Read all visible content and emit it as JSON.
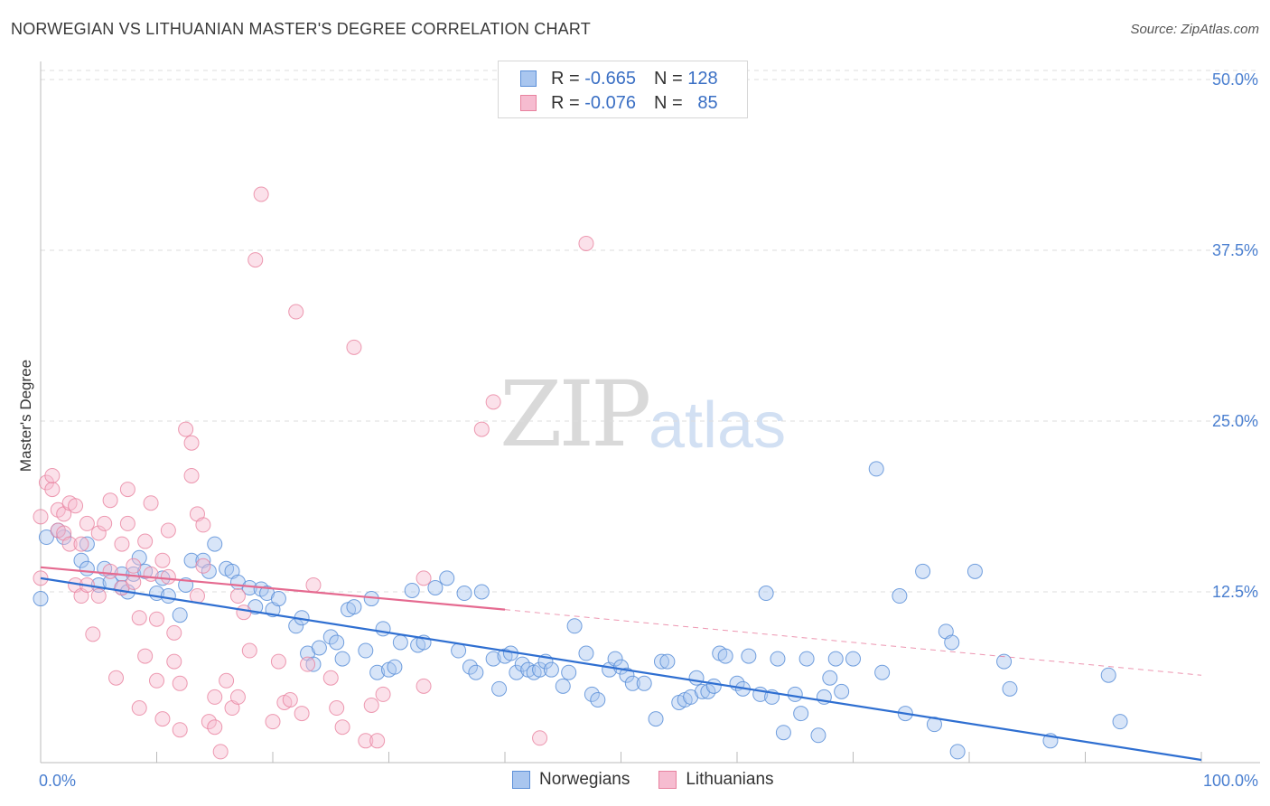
{
  "title": "NORWEGIAN VS LITHUANIAN MASTER'S DEGREE CORRELATION CHART",
  "source": "Source: ZipAtlas.com",
  "watermark": {
    "zip": "ZIP",
    "atlas": "atlas"
  },
  "legend_top": {
    "rows": [
      {
        "r_label": "R =",
        "r_value": "-0.665",
        "n_label": "N =",
        "n_value": "128"
      },
      {
        "r_label": "R =",
        "r_value": "-0.076",
        "n_label": "N =",
        "n_value": "85"
      }
    ]
  },
  "legend_bottom": [
    "Norwegians",
    "Lithuanians"
  ],
  "colors": {
    "norwegian_fill": "#a9c6ef",
    "norwegian_stroke": "#5b8fd8",
    "norwegian_line": "#2f6fd1",
    "lithuanian_fill": "#f6bcd0",
    "lithuanian_stroke": "#e8829f",
    "lithuanian_line": "#e56a90",
    "grid": "#dddddd",
    "tick_text": "#4a7fd0"
  },
  "chart_data": {
    "type": "scatter",
    "title": "NORWEGIAN VS LITHUANIAN MASTER'S DEGREE CORRELATION CHART",
    "xlabel": "",
    "ylabel": "Master's Degree",
    "xlim": [
      0,
      100
    ],
    "ylim": [
      0,
      50
    ],
    "x_tick_labels": [
      "0.0%",
      "100.0%"
    ],
    "y_ticks": [
      12.5,
      25.0,
      37.5,
      50.0
    ],
    "y_tick_labels": [
      "12.5%",
      "25.0%",
      "37.5%",
      "50.0%"
    ],
    "series": [
      {
        "name": "Norwegians",
        "r": -0.665,
        "n": 128,
        "trend": {
          "x": [
            0,
            100
          ],
          "y": [
            13.5,
            0.2
          ]
        },
        "points": [
          [
            0,
            12
          ],
          [
            0.5,
            16.5
          ],
          [
            1.5,
            17
          ],
          [
            2,
            16.5
          ],
          [
            3.5,
            14.8
          ],
          [
            4,
            14.2
          ],
          [
            4,
            16
          ],
          [
            5,
            13
          ],
          [
            5.5,
            14.2
          ],
          [
            6,
            13.2
          ],
          [
            7,
            13.8
          ],
          [
            7,
            12.8
          ],
          [
            7.5,
            12.5
          ],
          [
            8,
            13.8
          ],
          [
            8.5,
            15
          ],
          [
            9,
            14
          ],
          [
            10,
            12.4
          ],
          [
            10.5,
            13.5
          ],
          [
            11,
            12.2
          ],
          [
            12,
            10.8
          ],
          [
            12.5,
            13
          ],
          [
            13,
            14.8
          ],
          [
            14,
            14.8
          ],
          [
            14.5,
            14
          ],
          [
            15,
            16
          ],
          [
            16,
            14.2
          ],
          [
            16.5,
            14
          ],
          [
            17,
            13.2
          ],
          [
            18,
            12.8
          ],
          [
            18.5,
            11.4
          ],
          [
            19,
            12.7
          ],
          [
            19.5,
            12.4
          ],
          [
            20,
            11.2
          ],
          [
            20.5,
            12.0
          ],
          [
            22,
            10
          ],
          [
            22.5,
            10.6
          ],
          [
            23,
            8
          ],
          [
            23.5,
            7.2
          ],
          [
            24,
            8.4
          ],
          [
            25,
            9.2
          ],
          [
            25.5,
            8.8
          ],
          [
            26,
            7.6
          ],
          [
            26.5,
            11.2
          ],
          [
            27,
            11.4
          ],
          [
            28,
            8.2
          ],
          [
            28.5,
            12.0
          ],
          [
            29,
            6.6
          ],
          [
            29.5,
            9.8
          ],
          [
            30,
            6.8
          ],
          [
            30.5,
            7
          ],
          [
            31,
            8.8
          ],
          [
            32,
            12.6
          ],
          [
            32.5,
            8.6
          ],
          [
            33,
            8.8
          ],
          [
            34,
            12.8
          ],
          [
            35,
            13.5
          ],
          [
            36,
            8.2
          ],
          [
            36.5,
            12.4
          ],
          [
            37,
            7
          ],
          [
            37.5,
            6.6
          ],
          [
            38,
            12.5
          ],
          [
            39,
            7.6
          ],
          [
            39.5,
            5.4
          ],
          [
            40,
            7.8
          ],
          [
            40.5,
            8
          ],
          [
            41,
            6.6
          ],
          [
            41.5,
            7.2
          ],
          [
            42,
            6.8
          ],
          [
            42.5,
            6.6
          ],
          [
            43,
            6.8
          ],
          [
            43.5,
            7.4
          ],
          [
            44,
            6.8
          ],
          [
            45,
            5.6
          ],
          [
            45.5,
            6.6
          ],
          [
            46,
            10.0
          ],
          [
            47,
            8
          ],
          [
            47.5,
            5
          ],
          [
            48,
            4.6
          ],
          [
            49,
            6.8
          ],
          [
            49.5,
            7.6
          ],
          [
            50,
            7
          ],
          [
            50.5,
            6.4
          ],
          [
            51,
            5.8
          ],
          [
            52,
            5.8
          ],
          [
            53,
            3.2
          ],
          [
            53.5,
            7.4
          ],
          [
            54,
            7.4
          ],
          [
            55,
            4.4
          ],
          [
            55.5,
            4.6
          ],
          [
            56,
            4.8
          ],
          [
            56.5,
            6.2
          ],
          [
            57,
            5.2
          ],
          [
            57.5,
            5.2
          ],
          [
            58,
            5.6
          ],
          [
            58.5,
            8
          ],
          [
            59,
            7.8
          ],
          [
            60,
            5.8
          ],
          [
            60.5,
            5.4
          ],
          [
            61,
            7.8
          ],
          [
            62,
            5.0
          ],
          [
            62.5,
            12.4
          ],
          [
            63,
            4.8
          ],
          [
            63.5,
            7.6
          ],
          [
            64,
            2.2
          ],
          [
            65,
            5
          ],
          [
            65.5,
            3.6
          ],
          [
            66,
            7.6
          ],
          [
            67,
            2
          ],
          [
            67.5,
            4.8
          ],
          [
            68,
            6.2
          ],
          [
            68.5,
            7.6
          ],
          [
            69,
            5.2
          ],
          [
            70,
            7.6
          ],
          [
            72,
            21.5
          ],
          [
            72.5,
            6.6
          ],
          [
            74,
            12.2
          ],
          [
            74.5,
            3.6
          ],
          [
            76,
            14
          ],
          [
            77,
            2.8
          ],
          [
            78,
            9.6
          ],
          [
            78.5,
            8.8
          ],
          [
            79,
            0.8
          ],
          [
            80.5,
            14
          ],
          [
            83,
            7.4
          ],
          [
            83.5,
            5.4
          ],
          [
            87,
            1.6
          ],
          [
            92,
            6.4
          ],
          [
            93,
            3
          ]
        ]
      },
      {
        "name": "Lithuanians",
        "r": -0.076,
        "n": 85,
        "trend": {
          "x": [
            0,
            40
          ],
          "y": [
            14.3,
            11.2
          ]
        },
        "trend_dashed": {
          "x": [
            40,
            100
          ],
          "y": [
            11.2,
            6.4
          ]
        },
        "points": [
          [
            0,
            18
          ],
          [
            0,
            13.5
          ],
          [
            0.5,
            20.5
          ],
          [
            1,
            20
          ],
          [
            1,
            21
          ],
          [
            1.5,
            18.5
          ],
          [
            1.5,
            17
          ],
          [
            2,
            16.8
          ],
          [
            2,
            18.2
          ],
          [
            2.5,
            19
          ],
          [
            2.5,
            16
          ],
          [
            3,
            13
          ],
          [
            3,
            18.8
          ],
          [
            3.5,
            12.2
          ],
          [
            3.5,
            16
          ],
          [
            4,
            17.5
          ],
          [
            4,
            13
          ],
          [
            4.5,
            9.4
          ],
          [
            5,
            12.2
          ],
          [
            5,
            16.8
          ],
          [
            5.5,
            17.5
          ],
          [
            6,
            14
          ],
          [
            6,
            19.2
          ],
          [
            6.5,
            6.2
          ],
          [
            7,
            12.8
          ],
          [
            7,
            16
          ],
          [
            7.5,
            20
          ],
          [
            7.5,
            17.5
          ],
          [
            8,
            14.4
          ],
          [
            8,
            13.2
          ],
          [
            8.5,
            4
          ],
          [
            8.5,
            10.6
          ],
          [
            9,
            7.8
          ],
          [
            9,
            16.2
          ],
          [
            9.5,
            13.8
          ],
          [
            9.5,
            19
          ],
          [
            10,
            10.5
          ],
          [
            10,
            6
          ],
          [
            10.5,
            3.2
          ],
          [
            10.5,
            14.8
          ],
          [
            11,
            17
          ],
          [
            11,
            13.6
          ],
          [
            11.5,
            9.5
          ],
          [
            11.5,
            7.4
          ],
          [
            12,
            2.4
          ],
          [
            12,
            5.8
          ],
          [
            12.5,
            24.4
          ],
          [
            13,
            23.4
          ],
          [
            13,
            21
          ],
          [
            13.5,
            18.2
          ],
          [
            13.5,
            12.2
          ],
          [
            14,
            14.4
          ],
          [
            14,
            17.4
          ],
          [
            14.5,
            3
          ],
          [
            15,
            4.8
          ],
          [
            15,
            2.6
          ],
          [
            15.5,
            0.8
          ],
          [
            16,
            6
          ],
          [
            16.5,
            4
          ],
          [
            17,
            4.8
          ],
          [
            17,
            12.2
          ],
          [
            17.5,
            11
          ],
          [
            18,
            8.2
          ],
          [
            18.5,
            36.8
          ],
          [
            19,
            41.6
          ],
          [
            20,
            3
          ],
          [
            20.5,
            7.4
          ],
          [
            21,
            4.4
          ],
          [
            21.5,
            4.6
          ],
          [
            22,
            33
          ],
          [
            22.5,
            3.6
          ],
          [
            23,
            7.2
          ],
          [
            23.5,
            13
          ],
          [
            25,
            6.2
          ],
          [
            25.5,
            4
          ],
          [
            26,
            2.6
          ],
          [
            27,
            30.4
          ],
          [
            28,
            1.6
          ],
          [
            28.5,
            4.2
          ],
          [
            29,
            1.6
          ],
          [
            29.5,
            5
          ],
          [
            33,
            5.6
          ],
          [
            33,
            13.5
          ],
          [
            38,
            24.4
          ],
          [
            39,
            26.4
          ],
          [
            43,
            1.8
          ],
          [
            47,
            38
          ]
        ]
      }
    ]
  }
}
